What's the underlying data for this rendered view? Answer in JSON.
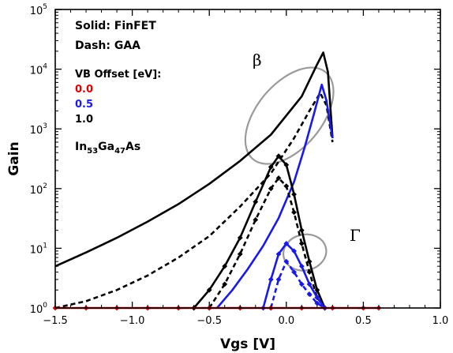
{
  "chart_data": {
    "type": "line",
    "title": "",
    "xlabel": "Vgs [V]",
    "ylabel": "Gain",
    "xlim": [
      -1.5,
      1.0
    ],
    "ylim": [
      1,
      100000
    ],
    "yscale": "log",
    "x_tick_labels": [
      "−1.5",
      "−1.0",
      "−0.5",
      "0.0",
      "0.5",
      "1.0"
    ],
    "y_tick_labels": [
      {
        "base": "10",
        "exp": "0"
      },
      {
        "base": "10",
        "exp": "1"
      },
      {
        "base": "10",
        "exp": "2"
      },
      {
        "base": "10",
        "exp": "3"
      },
      {
        "base": "10",
        "exp": "4"
      },
      {
        "base": "10",
        "exp": "5"
      }
    ],
    "annotations": {
      "line1": "Solid: FinFET",
      "line2": "Dash: GAA",
      "legend_title": "VB Offset [eV]:",
      "material": {
        "p1": "In",
        "s1": "53",
        "p2": "Ga",
        "s2": "47",
        "p3": "As"
      },
      "beta": "β",
      "gamma": "Γ"
    },
    "legend_entries": [
      {
        "label": "0.0",
        "color": "#e00000"
      },
      {
        "label": "0.5",
        "color": "#1a1ae6"
      },
      {
        "label": "1.0",
        "color": "#000000"
      }
    ],
    "series": [
      {
        "group": "beta",
        "device": "FinFET",
        "vb_offset": "1.0",
        "color": "#000000",
        "dash": false,
        "markers": false,
        "x": [
          -1.5,
          -1.3,
          -1.1,
          -0.9,
          -0.7,
          -0.5,
          -0.3,
          -0.1,
          0.1,
          0.2,
          0.24,
          0.27,
          0.3
        ],
        "y": [
          5,
          8.5,
          15,
          28,
          55,
          120,
          290,
          800,
          3500,
          12000,
          19000,
          9000,
          700
        ]
      },
      {
        "group": "beta",
        "device": "GAA",
        "vb_offset": "1.0",
        "color": "#000000",
        "dash": true,
        "markers": false,
        "x": [
          -1.5,
          -1.3,
          -1.1,
          -0.9,
          -0.7,
          -0.5,
          -0.3,
          -0.1,
          0.05,
          0.15,
          0.22,
          0.26,
          0.3
        ],
        "y": [
          1,
          1.3,
          2,
          3.5,
          7,
          16,
          50,
          180,
          700,
          2000,
          4000,
          2500,
          600
        ]
      },
      {
        "group": "beta",
        "device": "FinFET",
        "vb_offset": "0.5",
        "color": "#1a1ae6",
        "dash": false,
        "markers": false,
        "x": [
          -0.45,
          -0.35,
          -0.25,
          -0.15,
          -0.05,
          0.05,
          0.12,
          0.18,
          0.23,
          0.26,
          0.3
        ],
        "y": [
          1,
          2,
          4.5,
          11,
          32,
          130,
          500,
          1800,
          5500,
          3000,
          700
        ]
      },
      {
        "group": "gamma",
        "device": "FinFET",
        "vb_offset": "1.0",
        "color": "#000000",
        "dash": false,
        "markers": true,
        "x": [
          -0.6,
          -0.5,
          -0.4,
          -0.3,
          -0.2,
          -0.1,
          -0.05,
          0.0,
          0.05,
          0.1,
          0.15,
          0.2,
          0.25
        ],
        "y": [
          1,
          2,
          5,
          15,
          60,
          230,
          350,
          250,
          80,
          20,
          6,
          2,
          1
        ]
      },
      {
        "group": "gamma",
        "device": "GAA",
        "vb_offset": "1.0",
        "color": "#000000",
        "dash": true,
        "markers": true,
        "x": [
          -0.5,
          -0.4,
          -0.3,
          -0.2,
          -0.1,
          -0.05,
          0.0,
          0.05,
          0.1,
          0.15,
          0.2,
          0.25
        ],
        "y": [
          1,
          2.5,
          8,
          30,
          100,
          150,
          110,
          40,
          12,
          4,
          1.5,
          1
        ]
      },
      {
        "group": "gamma",
        "device": "FinFET",
        "vb_offset": "0.5",
        "color": "#1a1ae6",
        "dash": false,
        "markers": true,
        "x": [
          -0.15,
          -0.1,
          -0.05,
          0.0,
          0.05,
          0.1,
          0.15,
          0.2,
          0.25
        ],
        "y": [
          1,
          3,
          8,
          12,
          9,
          5,
          2.5,
          1.5,
          1
        ]
      },
      {
        "group": "gamma",
        "device": "GAA",
        "vb_offset": "0.5",
        "color": "#1a1ae6",
        "dash": true,
        "markers": true,
        "x": [
          -0.1,
          -0.05,
          0.0,
          0.05,
          0.1,
          0.15,
          0.2,
          0.25
        ],
        "y": [
          1,
          3,
          6,
          4,
          2.5,
          1.7,
          1.2,
          1
        ]
      },
      {
        "group": "gamma",
        "device": "FinFET",
        "vb_offset": "0.0",
        "color": "#e00000",
        "dash": false,
        "markers": true,
        "x": [
          -1.5,
          -1.3,
          -1.1,
          -0.9,
          -0.7,
          -0.5,
          -0.3,
          -0.1,
          0.1,
          0.3,
          0.5,
          0.6
        ],
        "y": [
          1,
          1,
          1,
          1,
          1,
          1,
          1,
          1,
          1,
          1,
          1,
          1
        ]
      }
    ],
    "ellipses": [
      {
        "name": "beta",
        "cx": 0.02,
        "cy_log": 3.22,
        "rx": 0.21,
        "ry_log": 0.95,
        "rot": 40,
        "color": "#9a9a9a"
      },
      {
        "name": "gamma",
        "cx": 0.12,
        "cy_log": 0.93,
        "rx": 0.14,
        "ry_log": 0.3,
        "rot": -12,
        "color": "#9a9a9a"
      }
    ],
    "grid": false,
    "legend_placement": "top-left"
  }
}
